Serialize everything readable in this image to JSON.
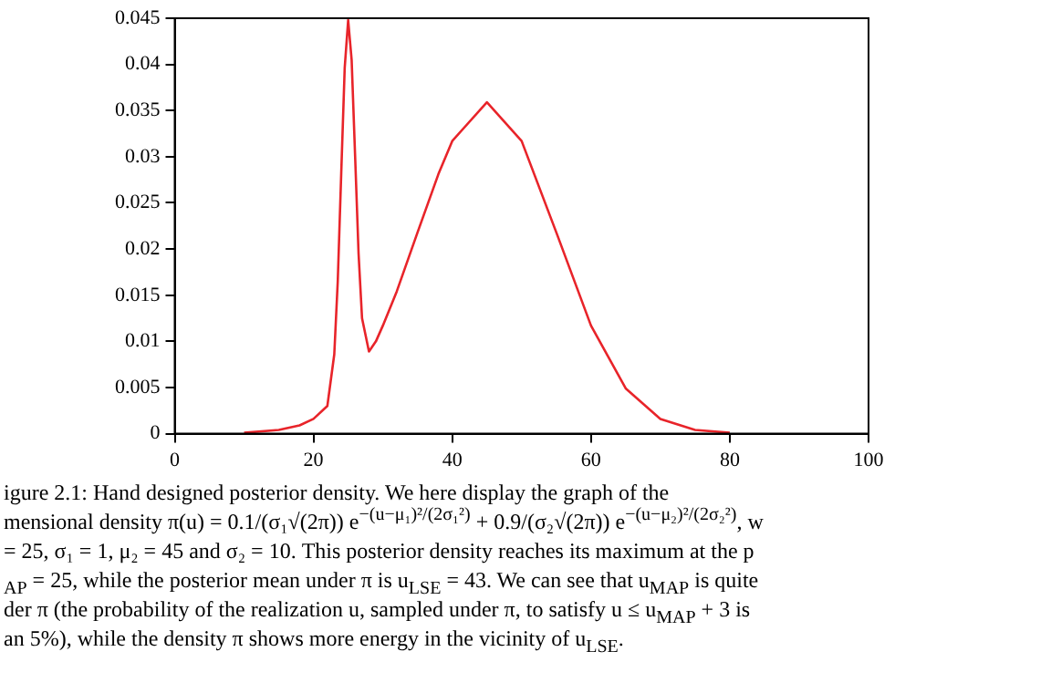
{
  "chart_data": {
    "type": "line",
    "x": [
      10,
      15,
      18,
      20,
      22,
      23,
      23.5,
      24,
      24.5,
      25,
      25.5,
      26,
      26.5,
      27,
      28,
      29,
      30,
      32,
      35,
      38,
      40,
      45,
      50,
      55,
      60,
      65,
      70,
      75,
      80
    ],
    "series": [
      {
        "color": "#e8242a",
        "values": [
          0.0001,
          0.0004,
          0.0009,
          0.0016,
          0.003,
          0.0086,
          0.0165,
          0.0282,
          0.0396,
          0.0448,
          0.0405,
          0.0301,
          0.0195,
          0.0125,
          0.0089,
          0.01,
          0.0117,
          0.0154,
          0.0218,
          0.0281,
          0.0317,
          0.0359,
          0.0317,
          0.0218,
          0.0117,
          0.0049,
          0.0016,
          0.0004,
          0.0001
        ]
      }
    ],
    "xlim": [
      0,
      100
    ],
    "xticks": [
      0,
      20,
      40,
      60,
      80,
      100
    ],
    "ylim": [
      0,
      0.045
    ],
    "yticks": [
      0,
      0.005,
      0.01,
      0.015,
      0.02,
      0.025,
      0.03,
      0.035,
      0.04,
      0.045
    ],
    "grid": false,
    "legend": false,
    "marker": "none",
    "line_style": "solid",
    "annotations": [
      "igure 2.1: Hand designed posterior density. We here display the graph of the",
      "mensional density π(u) = 0.1/(σ₁√(2π)) e$^{−(u−μ₁)²/(2σ₁²)}$ + 0.9/(σ₂√(2π)) e$^{−(u−μ₂)²/(2σ₂²)}$, w",
      "= 25, σ₁ = 1, μ₂ = 45 and σ₂ = 10. This posterior density reaches its maximum at the p",
      "$_{AP}$ = 25, while the posterior mean under π is u$_{LSE}$ = 43. We can see that u$_{MAP}$ is quite",
      "der π (the probability of the realization u, sampled under π, to satisfy u ≤ u$_{MAP}$ + 3 is",
      "an 5%), while the density π shows more energy in the vicinity of u$_{LSE}$."
    ]
  }
}
